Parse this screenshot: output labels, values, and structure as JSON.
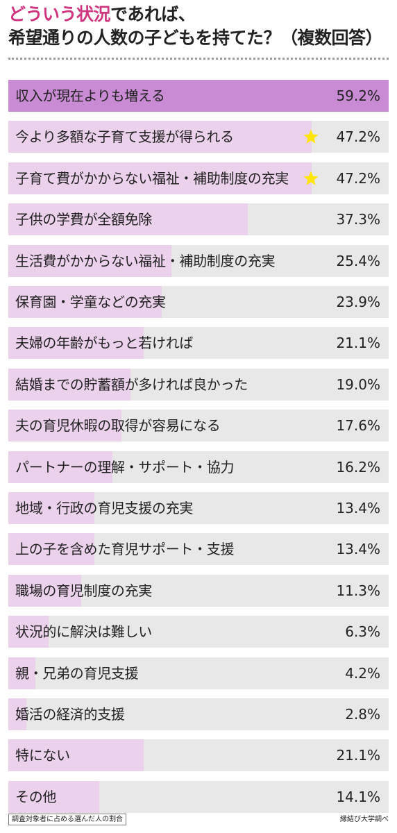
{
  "header": {
    "title_accent": "どういう状況",
    "title_line1_rest": "であれば、",
    "title_line2": "希望通りの人数の子どもを持てた？（複数回答）"
  },
  "chart_data": {
    "type": "bar",
    "orientation": "horizontal",
    "unit": "%",
    "xlim": [
      0,
      59.2
    ],
    "colors": {
      "top_bar": "#c98bd3",
      "bar": "#ecd1ec",
      "track": "#e8e8e8",
      "star": "#ffe600"
    },
    "categories": [
      "収入が現在よりも増える",
      "今より多額な子育て支援が得られる",
      "子育て費がかからない福祉・補助制度の充実",
      "子供の学費が全額免除",
      "生活費がかからない福祉・補助制度の充実",
      "保育園・学童などの充実",
      "夫婦の年齢がもっと若ければ",
      "結婚までの貯蓄額が多ければ良かった",
      "夫の育児休暇の取得が容易になる",
      "パートナーの理解・サポート・協力",
      "地域・行政の育児支援の充実",
      "上の子を含めた育児サポート・支援",
      "職場の育児制度の充実",
      "状況的に解決は難しい",
      "親・兄弟の育児支援",
      "婚活の経済的支援",
      "特にない",
      "その他"
    ],
    "values": [
      59.2,
      47.2,
      47.2,
      37.3,
      25.4,
      23.9,
      21.1,
      19.0,
      17.6,
      16.2,
      13.4,
      13.4,
      11.3,
      6.3,
      4.2,
      2.8,
      21.1,
      14.1
    ],
    "value_labels": [
      "59.2%",
      "47.2%",
      "47.2%",
      "37.3%",
      "25.4%",
      "23.9%",
      "21.1%",
      "19.0%",
      "17.6%",
      "16.2%",
      "13.4%",
      "13.4%",
      "11.3%",
      "6.3%",
      "4.2%",
      "2.8%",
      "21.1%",
      "14.1%"
    ],
    "starred": [
      false,
      true,
      true,
      false,
      false,
      false,
      false,
      false,
      false,
      false,
      false,
      false,
      false,
      false,
      false,
      false,
      false,
      false
    ]
  },
  "footer": {
    "note": "調査対象者に占める選んだ人の割合",
    "source": "縁結び大学調べ"
  }
}
